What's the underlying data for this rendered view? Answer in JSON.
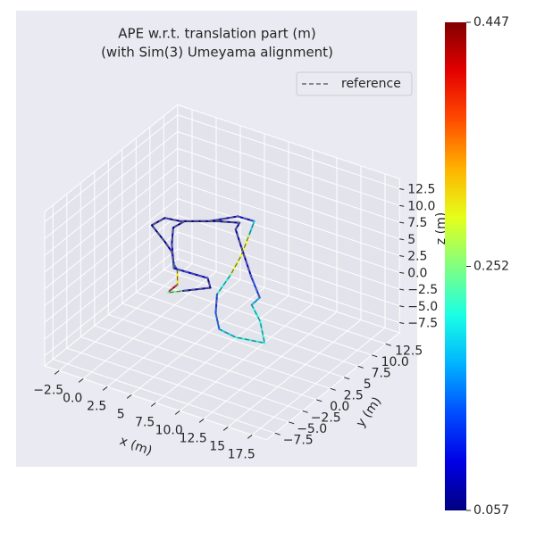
{
  "chart_data": {
    "type": "trajectory3d",
    "title_lines": [
      "APE w.r.t. translation part (m)",
      "(with Sim(3) Umeyama alignment)"
    ],
    "xlabel": "x (m)",
    "ylabel": "y (m)",
    "zlabel": "z (m)",
    "legend": {
      "label": "reference",
      "color": "#666666",
      "position": "upper right"
    },
    "xlim": [
      -4,
      19
    ],
    "ylim": [
      -9,
      15
    ],
    "zlim": [
      -9,
      14
    ],
    "xticks": [
      {
        "value": -2.5,
        "label": "−2.5"
      },
      {
        "value": 0,
        "label": "0.0"
      },
      2.5,
      5.0,
      7.5,
      {
        "value": 10,
        "label": "10.0"
      },
      12.5,
      15.0,
      17.5
    ],
    "yticks": [
      {
        "value": -7.5,
        "label": "−7.5"
      },
      {
        "value": -5,
        "label": "−5.0"
      },
      {
        "value": -2.5,
        "label": "−2.5"
      },
      {
        "value": 0,
        "label": "0.0"
      },
      2.5,
      5.0,
      7.5,
      {
        "value": 10,
        "label": "10.0"
      },
      12.5
    ],
    "zticks": [
      {
        "value": -7.5,
        "label": "−7.5"
      },
      {
        "value": -5,
        "label": "−5.0"
      },
      {
        "value": -2.5,
        "label": "−2.5"
      },
      {
        "value": 0,
        "label": "0.0"
      },
      2.5,
      5.0,
      7.5,
      {
        "value": 10,
        "label": "10.0"
      },
      12.5
    ],
    "grid": true,
    "colormap": "jet",
    "colorbar": {
      "lim": [
        0.057,
        0.447
      ],
      "ticks": [
        0.057,
        0.252,
        0.447
      ]
    },
    "trajectory": {
      "x": [
        3.82,
        3.82,
        2.47,
        1.7,
        0.46,
        -0.92,
        -3.46,
        -3.17,
        -1.73,
        0.38,
        2.04,
        3.69,
        4.62,
        5.89,
        6.83,
        7.61,
        9.21,
        10.95,
        12.9,
        15.53,
        13.21,
        11.11,
        11.04,
        8.49,
        4.92,
        3.06,
        2.76,
        0.98,
        -1.42,
        -1.67,
        -0.29,
        2.08,
        5.45,
        6.53,
        4.72,
        3.85
      ],
      "y": [
        -0.1,
        1.36,
        3.67,
        4.39,
        6.22,
        7.41,
        9.41,
        11.25,
        11.56,
        13.07,
        15.36,
        15.45,
        12.84,
        9.21,
        5.71,
        1.9,
        -1.13,
        -3.52,
        -3.93,
        -3.32,
        -0.08,
        2.05,
        3.63,
        6.53,
        10.88,
        13.18,
        14.42,
        13.51,
        11.78,
        10.15,
        7.5,
        3.75,
        3.98,
        2.58,
        0.55,
        -0.44
      ],
      "z": [
        0,
        0,
        0,
        0,
        0,
        0,
        0,
        0,
        0,
        0,
        0,
        0,
        0,
        0,
        0,
        0,
        0,
        0,
        0,
        0,
        0,
        0,
        0,
        0,
        0,
        0,
        0,
        0,
        0,
        0,
        0,
        0,
        0,
        0,
        0,
        0
      ],
      "error": [
        0.44,
        0.42,
        0.2,
        0.1,
        0.08,
        0.07,
        0.06,
        0.07,
        0.08,
        0.07,
        0.09,
        0.1,
        0.28,
        0.32,
        0.27,
        0.15,
        0.1,
        0.18,
        0.2,
        0.22,
        0.2,
        0.21,
        0.15,
        0.1,
        0.08,
        0.07,
        0.07,
        0.06,
        0.06,
        0.07,
        0.08,
        0.1,
        0.08,
        0.07,
        0.08,
        0.42
      ]
    }
  }
}
